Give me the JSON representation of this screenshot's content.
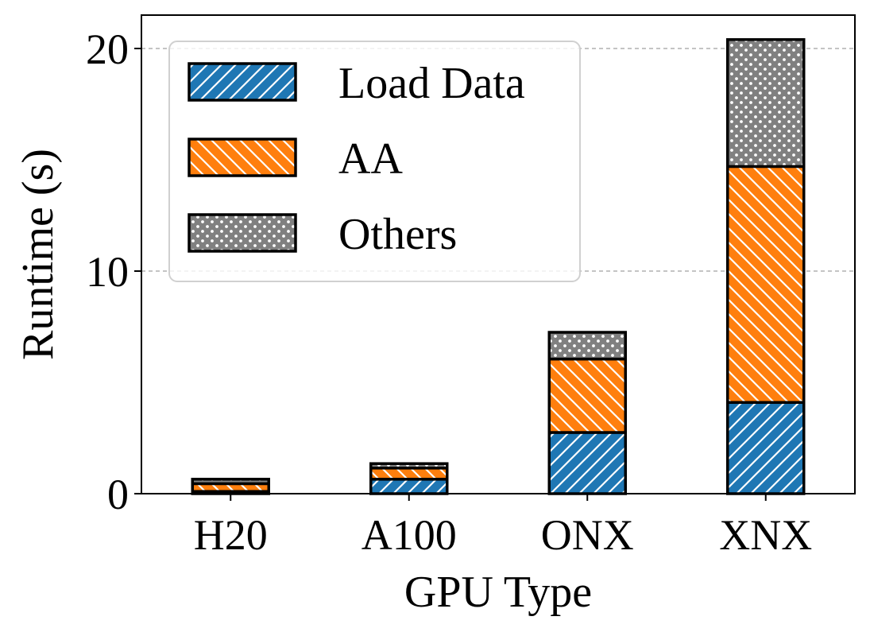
{
  "chart_data": {
    "type": "bar",
    "stacked": true,
    "categories": [
      "H20",
      "A100",
      "ONX",
      "XNX"
    ],
    "series": [
      {
        "name": "Load Data",
        "values": [
          0.1,
          0.65,
          2.75,
          4.1
        ],
        "color": "#1f77b4",
        "hatch": "forward-diagonal"
      },
      {
        "name": "AA",
        "values": [
          0.35,
          0.5,
          3.3,
          10.6
        ],
        "color": "#ff7f0e",
        "hatch": "back-diagonal"
      },
      {
        "name": "Others",
        "values": [
          0.2,
          0.2,
          1.2,
          5.7
        ],
        "color": "#808080",
        "hatch": "dots"
      }
    ],
    "xlabel": "GPU Type",
    "ylabel": "Runtime (s)",
    "ylim": [
      0,
      21.5
    ],
    "yticks": [
      0,
      10,
      20
    ],
    "grid": "horizontal-dashed",
    "legend_position": "top-left"
  }
}
